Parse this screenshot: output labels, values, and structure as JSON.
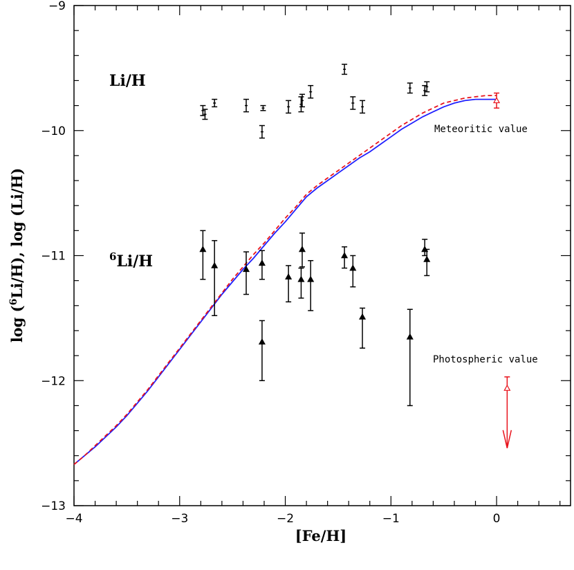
{
  "chart_data": {
    "type": "scatter",
    "title": "",
    "xlabel": "[Fe/H]",
    "ylabel_prefix": "log (",
    "ylabel_sup": "6",
    "ylabel_rest": "Li/H),  log (Li/H)",
    "xlim": [
      -4,
      0.7
    ],
    "ylim": [
      -13,
      -9
    ],
    "x_ticks": [
      -4,
      -3,
      -2,
      -1,
      0
    ],
    "x_tick_labels": [
      "−4",
      "−3",
      "−2",
      "−1",
      "0"
    ],
    "y_ticks": [
      -13,
      -12,
      -11,
      -10,
      -9
    ],
    "y_tick_labels": [
      "−13",
      "−12",
      "−11",
      "−10",
      "−9"
    ],
    "labels": {
      "li": "Li/H",
      "li6_sup": "6",
      "li6_rest": "Li/H",
      "meteoritic": "Meteoritic value",
      "photospheric": "Photospheric value"
    },
    "colors": {
      "data": "#000000",
      "model_solid": "#1f1fff",
      "model_dashed": "#e8121b",
      "solar": "#e8121b"
    },
    "series": [
      {
        "name": "Li/H",
        "marker": "bar",
        "points": [
          {
            "x": -2.78,
            "y": -9.84,
            "err": 0.04
          },
          {
            "x": -2.76,
            "y": -9.87,
            "err": 0.04
          },
          {
            "x": -2.67,
            "y": -9.78,
            "err": 0.03
          },
          {
            "x": -2.37,
            "y": -9.8,
            "err": 0.05
          },
          {
            "x": -2.21,
            "y": -9.82,
            "err": 0.02
          },
          {
            "x": -2.22,
            "y": -10.01,
            "err": 0.05
          },
          {
            "x": -1.97,
            "y": -9.81,
            "err": 0.05
          },
          {
            "x": -1.85,
            "y": -9.79,
            "err": 0.06
          },
          {
            "x": -1.84,
            "y": -9.76,
            "err": 0.05
          },
          {
            "x": -1.76,
            "y": -9.69,
            "err": 0.05
          },
          {
            "x": -1.44,
            "y": -9.51,
            "err": 0.04
          },
          {
            "x": -1.36,
            "y": -9.78,
            "err": 0.05
          },
          {
            "x": -1.27,
            "y": -9.81,
            "err": 0.05
          },
          {
            "x": -0.82,
            "y": -9.66,
            "err": 0.04
          },
          {
            "x": -0.68,
            "y": -9.68,
            "err": 0.04
          },
          {
            "x": -0.66,
            "y": -9.65,
            "err": 0.04
          }
        ]
      },
      {
        "name": "6Li/H",
        "marker": "triangle",
        "points": [
          {
            "x": -2.78,
            "y": -10.95,
            "err_lo": 0.24,
            "err_hi": 0.15
          },
          {
            "x": -2.67,
            "y": -11.08,
            "err_lo": 0.4,
            "err_hi": 0.2
          },
          {
            "x": -2.37,
            "y": -11.11,
            "err_lo": 0.2,
            "err_hi": 0.14
          },
          {
            "x": -2.22,
            "y": -11.06,
            "err_lo": 0.13,
            "err_hi": 0.1
          },
          {
            "x": -2.22,
            "y": -11.69,
            "err_lo": 0.31,
            "err_hi": 0.17
          },
          {
            "x": -1.97,
            "y": -11.17,
            "err_lo": 0.2,
            "err_hi": 0.09
          },
          {
            "x": -1.85,
            "y": -11.19,
            "err_lo": 0.15,
            "err_hi": 0.09
          },
          {
            "x": -1.84,
            "y": -10.95,
            "err_lo": 0.14,
            "err_hi": 0.13
          },
          {
            "x": -1.76,
            "y": -11.19,
            "err_lo": 0.25,
            "err_hi": 0.15
          },
          {
            "x": -1.44,
            "y": -11.0,
            "err_lo": 0.1,
            "err_hi": 0.07
          },
          {
            "x": -1.36,
            "y": -11.1,
            "err_lo": 0.15,
            "err_hi": 0.1
          },
          {
            "x": -1.27,
            "y": -11.49,
            "err_lo": 0.25,
            "err_hi": 0.07
          },
          {
            "x": -0.82,
            "y": -11.65,
            "err_lo": 0.55,
            "err_hi": 0.22
          },
          {
            "x": -0.68,
            "y": -10.95,
            "err_lo": 0.05,
            "err_hi": 0.08
          },
          {
            "x": -0.66,
            "y": -11.03,
            "err_lo": 0.13,
            "err_hi": 0.08
          }
        ]
      },
      {
        "name": "Model (solid)",
        "style": "solid",
        "x": [
          -4.0,
          -3.9,
          -3.8,
          -3.7,
          -3.6,
          -3.5,
          -3.4,
          -3.3,
          -3.2,
          -3.1,
          -3.0,
          -2.9,
          -2.8,
          -2.7,
          -2.6,
          -2.5,
          -2.4,
          -2.3,
          -2.2,
          -2.1,
          -2.0,
          -1.9,
          -1.8,
          -1.7,
          -1.6,
          -1.5,
          -1.4,
          -1.3,
          -1.2,
          -1.1,
          -1.0,
          -0.9,
          -0.8,
          -0.7,
          -0.6,
          -0.5,
          -0.4,
          -0.3,
          -0.2,
          -0.1,
          0.0
        ],
        "y": [
          -12.67,
          -12.6,
          -12.53,
          -12.45,
          -12.37,
          -12.28,
          -12.18,
          -12.08,
          -11.97,
          -11.86,
          -11.75,
          -11.64,
          -11.53,
          -11.42,
          -11.31,
          -11.21,
          -11.11,
          -11.02,
          -10.92,
          -10.82,
          -10.73,
          -10.63,
          -10.53,
          -10.46,
          -10.4,
          -10.34,
          -10.28,
          -10.22,
          -10.17,
          -10.11,
          -10.05,
          -9.99,
          -9.94,
          -9.89,
          -9.85,
          -9.81,
          -9.78,
          -9.76,
          -9.75,
          -9.75,
          -9.75
        ]
      },
      {
        "name": "Model (dashed)",
        "style": "dashed",
        "x": [
          -4.0,
          -3.9,
          -3.8,
          -3.7,
          -3.6,
          -3.5,
          -3.4,
          -3.3,
          -3.2,
          -3.1,
          -3.0,
          -2.9,
          -2.8,
          -2.7,
          -2.6,
          -2.5,
          -2.4,
          -2.3,
          -2.2,
          -2.1,
          -2.0,
          -1.9,
          -1.8,
          -1.7,
          -1.6,
          -1.5,
          -1.4,
          -1.3,
          -1.2,
          -1.1,
          -1.0,
          -0.9,
          -0.8,
          -0.7,
          -0.6,
          -0.5,
          -0.4,
          -0.3,
          -0.2,
          -0.1,
          0.0
        ],
        "y": [
          -12.67,
          -12.6,
          -12.52,
          -12.44,
          -12.36,
          -12.27,
          -12.17,
          -12.07,
          -11.96,
          -11.85,
          -11.74,
          -11.63,
          -11.52,
          -11.41,
          -11.3,
          -11.19,
          -11.09,
          -10.99,
          -10.9,
          -10.8,
          -10.7,
          -10.61,
          -10.51,
          -10.44,
          -10.38,
          -10.32,
          -10.26,
          -10.2,
          -10.14,
          -10.08,
          -10.02,
          -9.96,
          -9.91,
          -9.86,
          -9.82,
          -9.78,
          -9.76,
          -9.74,
          -9.73,
          -9.72,
          -9.72
        ]
      },
      {
        "name": "Meteoritic value",
        "marker": "bar",
        "points": [
          {
            "x": 0.0,
            "y": -9.76,
            "err": 0.06
          }
        ]
      },
      {
        "name": "Photospheric value",
        "marker": "open-triangle-upper-limit",
        "points": [
          {
            "x": 0.1,
            "y": -12.06,
            "err_hi": 0.09,
            "arrow_to": -12.54
          }
        ]
      }
    ]
  }
}
